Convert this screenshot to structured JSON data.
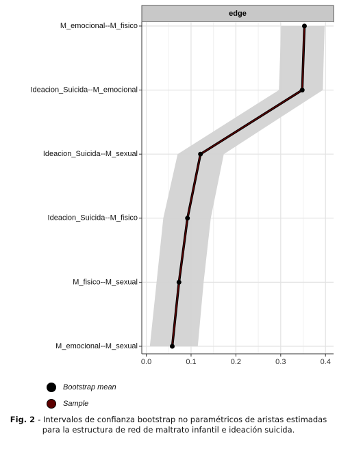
{
  "chart_data": {
    "type": "ci_line",
    "strip": "edge",
    "categories": [
      "M_emocional--M_fisico",
      "Ideacion_Suicida--M_emocional",
      "Ideacion_Suicida--M_sexual",
      "Ideacion_Suicida--M_fisico",
      "M_fisico--M_sexual",
      "M_emocional--M_sexual"
    ],
    "series": [
      {
        "name": "Bootstrap mean",
        "color": "#000000",
        "values": [
          0.353,
          0.348,
          0.121,
          0.092,
          0.073,
          0.058
        ]
      },
      {
        "name": "Sample",
        "color": "#5c0000",
        "values": [
          0.353,
          0.348,
          0.121,
          0.092,
          0.073,
          0.058
        ]
      }
    ],
    "ci_lower": [
      0.301,
      0.296,
      0.07,
      0.038,
      0.023,
      0.008
    ],
    "ci_upper": [
      0.398,
      0.394,
      0.173,
      0.144,
      0.128,
      0.115
    ],
    "band_color": "#d3d3d3",
    "xlim": [
      -0.01,
      0.418
    ],
    "xticks": [
      {
        "value": 0,
        "label": "0.0"
      },
      0.1,
      0.2,
      0.3,
      0.4
    ],
    "grid": true
  },
  "caption": {
    "label": "Fig. 2",
    "text": "- Intervalos de confianza bootstrap no paramétricos de aristas estimadas para la estructura de red de maltrato infantil e ideación suicida."
  }
}
